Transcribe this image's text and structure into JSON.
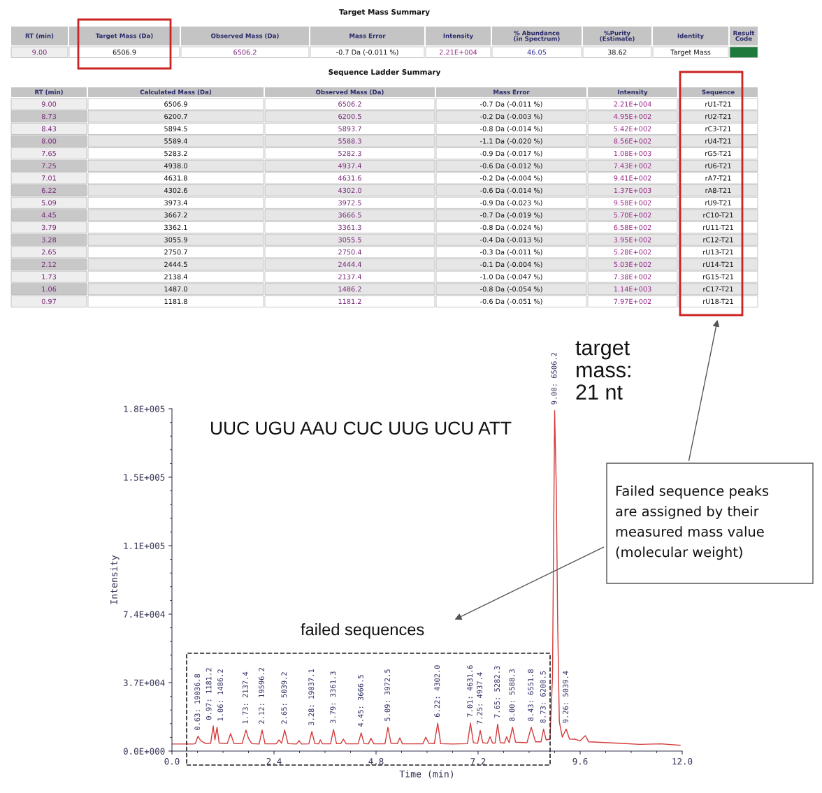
{
  "chart_data": [
    {
      "type": "other",
      "title": "Target Mass Summary",
      "categories": [
        "RT (min)",
        "Target Mass (Da)",
        "Observed Mass (Da)",
        "Mass Error",
        "Intensity",
        "% Abundance\n(in Spectrum)",
        "%Purity\n(Estimate)",
        "Identity",
        "Result\nCode"
      ],
      "annotations": [
        "9.00",
        "6506.9",
        "6506.2",
        "-0.7 Da (-0.011 %)",
        "2.21E+004",
        "46.05",
        "38.62",
        "Target Mass"
      ]
    },
    {
      "type": "other",
      "title": "Sequence Ladder Summary",
      "categories": [
        "RT (min)",
        "Calculated Mass (Da)",
        "Observed Mass (Da)",
        "Mass Error",
        "Intensity",
        "Sequence"
      ],
      "annotations": [
        "9.00",
        "6506.9",
        "6506.2",
        "-0.7 Da (-0.011 %)",
        "2.21E+004",
        "rU1-T21",
        "8.73",
        "6200.7",
        "6200.5",
        "-0.2 Da (-0.003 %)",
        "4.95E+002",
        "rU2-T21",
        "8.43",
        "5894.5",
        "5893.7",
        "-0.8 Da (-0.014 %)",
        "5.42E+002",
        "rC3-T21",
        "8.00",
        "5589.4",
        "5588.3",
        "-1.1 Da (-0.020 %)",
        "8.56E+002",
        "rU4-T21",
        "7.65",
        "5283.2",
        "5282.3",
        "-0.9 Da (-0.017 %)",
        "1.08E+003",
        "rG5-T21",
        "7.25",
        "4938.0",
        "4937.4",
        "-0.6 Da (-0.012 %)",
        "7.43E+002",
        "rU6-T21",
        "7.01",
        "4631.8",
        "4631.6",
        "-0.2 Da (-0.004 %)",
        "9.41E+002",
        "rA7-T21",
        "6.22",
        "4302.6",
        "4302.0",
        "-0.6 Da (-0.014 %)",
        "1.37E+003",
        "rA8-T21",
        "5.09",
        "3973.4",
        "3972.5",
        "-0.9 Da (-0.023 %)",
        "9.58E+002",
        "rU9-T21",
        "4.45",
        "3667.2",
        "3666.5",
        "-0.7 Da (-0.019 %)",
        "5.70E+002",
        "rC10-T21",
        "3.79",
        "3362.1",
        "3361.3",
        "-0.8 Da (-0.024 %)",
        "6.58E+002",
        "rU11-T21",
        "3.28",
        "3055.9",
        "3055.5",
        "-0.4 Da (-0.013 %)",
        "3.95E+002",
        "rC12-T21",
        "2.65",
        "2750.7",
        "2750.4",
        "-0.3 Da (-0.011 %)",
        "5.28E+002",
        "rU13-T21",
        "2.12",
        "2444.5",
        "2444.4",
        "-0.1 Da (-0.004 %)",
        "5.03E+002",
        "rU14-T21",
        "1.73",
        "2138.4",
        "2137.4",
        "-1.0 Da (-0.047 %)",
        "7.38E+002",
        "rG15-T21",
        "1.06",
        "1487.0",
        "1486.2",
        "-0.8 Da (-0.054 %)",
        "1.14E+003",
        "rC17-T21",
        "0.97",
        "1181.8",
        "1181.2",
        "-0.6 Da (-0.051 %)",
        "7.97E+002",
        "rU18-T21"
      ]
    },
    {
      "type": "line",
      "xlabel": "Time (min)",
      "ylabel": "Intensity",
      "x": [
        0,
        0.5,
        0.55,
        0.61,
        0.68,
        0.8,
        0.91,
        0.97,
        1.01,
        1.06,
        1.11,
        1.3,
        1.38,
        1.46,
        1.65,
        1.74,
        1.8,
        1.88,
        2.05,
        2.12,
        2.19,
        2.45,
        2.52,
        2.58,
        2.65,
        2.73,
        2.93,
        2.99,
        3.05,
        3.22,
        3.29,
        3.36,
        3.45,
        3.49,
        3.54,
        3.73,
        3.8,
        3.87,
        3.97,
        4.03,
        4.1,
        4.38,
        4.45,
        4.52,
        4.62,
        4.68,
        4.75,
        5.01,
        5.08,
        5.15,
        5.3,
        5.36,
        5.42,
        5.9,
        5.97,
        6.04,
        6.17,
        6.25,
        6.32,
        6.6,
        6.95,
        7.02,
        7.09,
        7.19,
        7.25,
        7.31,
        7.42,
        7.48,
        7.54,
        7.6,
        7.66,
        7.72,
        7.82,
        7.87,
        7.93,
        8.01,
        8.08,
        8.35,
        8.45,
        8.55,
        8.68,
        8.74,
        8.8,
        8.89,
        8.95,
        9.0,
        9.04,
        9.07,
        9.11,
        9.18,
        9.27,
        9.35,
        9.47,
        9.6,
        9.72,
        9.8,
        9.91,
        10.5,
        11.0,
        11.5,
        11.95
      ],
      "series": [
        {
          "color": "#d43a3a",
          "values": [
            3800,
            3800,
            4000,
            7900,
            5500,
            4000,
            4200,
            13500,
            6000,
            12800,
            4300,
            4000,
            9400,
            4000,
            4000,
            11300,
            6800,
            4000,
            3800,
            11300,
            3900,
            3900,
            6000,
            4200,
            11300,
            4000,
            3800,
            5600,
            3800,
            3900,
            10500,
            4000,
            3900,
            6000,
            3900,
            3900,
            11600,
            4000,
            4000,
            6400,
            3900,
            3900,
            9800,
            4000,
            3900,
            6800,
            3900,
            3900,
            12800,
            4200,
            4000,
            7100,
            3900,
            3900,
            7500,
            4200,
            4000,
            15000,
            4000,
            3800,
            4000,
            15000,
            4500,
            4200,
            11100,
            4500,
            4200,
            7700,
            4300,
            4300,
            14500,
            4500,
            4300,
            7700,
            4500,
            12800,
            4800,
            4500,
            12800,
            5000,
            5000,
            11800,
            6000,
            6400,
            40000,
            183000,
            140000,
            71000,
            15800,
            7500,
            11800,
            6500,
            6400,
            5500,
            8300,
            5000,
            4900,
            4200,
            3600,
            3900,
            3100
          ]
        }
      ],
      "xlim": [
        0,
        12
      ],
      "xticks": [
        {
          "value": 0,
          "label": "0.0"
        },
        {
          "value": 2.4,
          "label": "2.4"
        },
        {
          "value": 4.8,
          "label": "4.8"
        },
        {
          "value": 7.2,
          "label": "7.2"
        },
        {
          "value": 9.6,
          "label": "9.6"
        },
        {
          "value": 12,
          "label": "12.0"
        }
      ],
      "ylim": [
        0,
        184000
      ],
      "yticks": [
        {
          "value": 0,
          "label": "0.0E+000"
        },
        {
          "value": 36800,
          "label": "3.7E+004"
        },
        {
          "value": 73600,
          "label": "7.4E+004"
        },
        {
          "value": 110400,
          "label": "1.1E+005"
        },
        {
          "value": 147200,
          "label": "1.5E+005"
        },
        {
          "value": 184000,
          "label": "1.8E+005"
        }
      ],
      "annotations": [
        {
          "text": "0.63: 19036.8",
          "x": 0.61,
          "y": 7900
        },
        {
          "text": "0.97: 1181.2",
          "x": 0.97,
          "y": 13500
        },
        {
          "text": "1.06: 1486.2",
          "x": 1.06,
          "y": 12800
        },
        {
          "text": "1.73: 2137.4",
          "x": 1.74,
          "y": 11300
        },
        {
          "text": "2.12: 19596.2",
          "x": 2.12,
          "y": 11300
        },
        {
          "text": "2.65: 5039.2",
          "x": 2.65,
          "y": 11300
        },
        {
          "text": "3.28: 19037.1",
          "x": 3.29,
          "y": 10500
        },
        {
          "text": "3.79: 3361.3",
          "x": 3.8,
          "y": 11600
        },
        {
          "text": "4.45: 3666.5",
          "x": 4.45,
          "y": 9800
        },
        {
          "text": "5.09: 3972.5",
          "x": 5.08,
          "y": 12800
        },
        {
          "text": "6.22: 4302.0",
          "x": 6.25,
          "y": 15000
        },
        {
          "text": "7.01: 4631.6",
          "x": 7.02,
          "y": 15000
        },
        {
          "text": "7.25: 4937.4",
          "x": 7.25,
          "y": 11100
        },
        {
          "text": "7.65: 5282.3",
          "x": 7.66,
          "y": 14500
        },
        {
          "text": "8.00: 5588.3",
          "x": 8.01,
          "y": 12800
        },
        {
          "text": "8.43: 6551.8",
          "x": 8.45,
          "y": 12800
        },
        {
          "text": "8.73: 6200.5",
          "x": 8.74,
          "y": 11800
        },
        {
          "text": "9.00: 6506.2",
          "x": 9.0,
          "y": 183000
        },
        {
          "text": "9.26: 5039.4",
          "x": 9.27,
          "y": 11800
        },
        "UUC UGU AAU CUC UUG UCU ATT",
        "target\nmass:\n21 nt",
        "Failed sequence peaks\nare assigned by their\nmeasured mass value\n(molecular weight)",
        "failed sequences"
      ]
    }
  ]
}
